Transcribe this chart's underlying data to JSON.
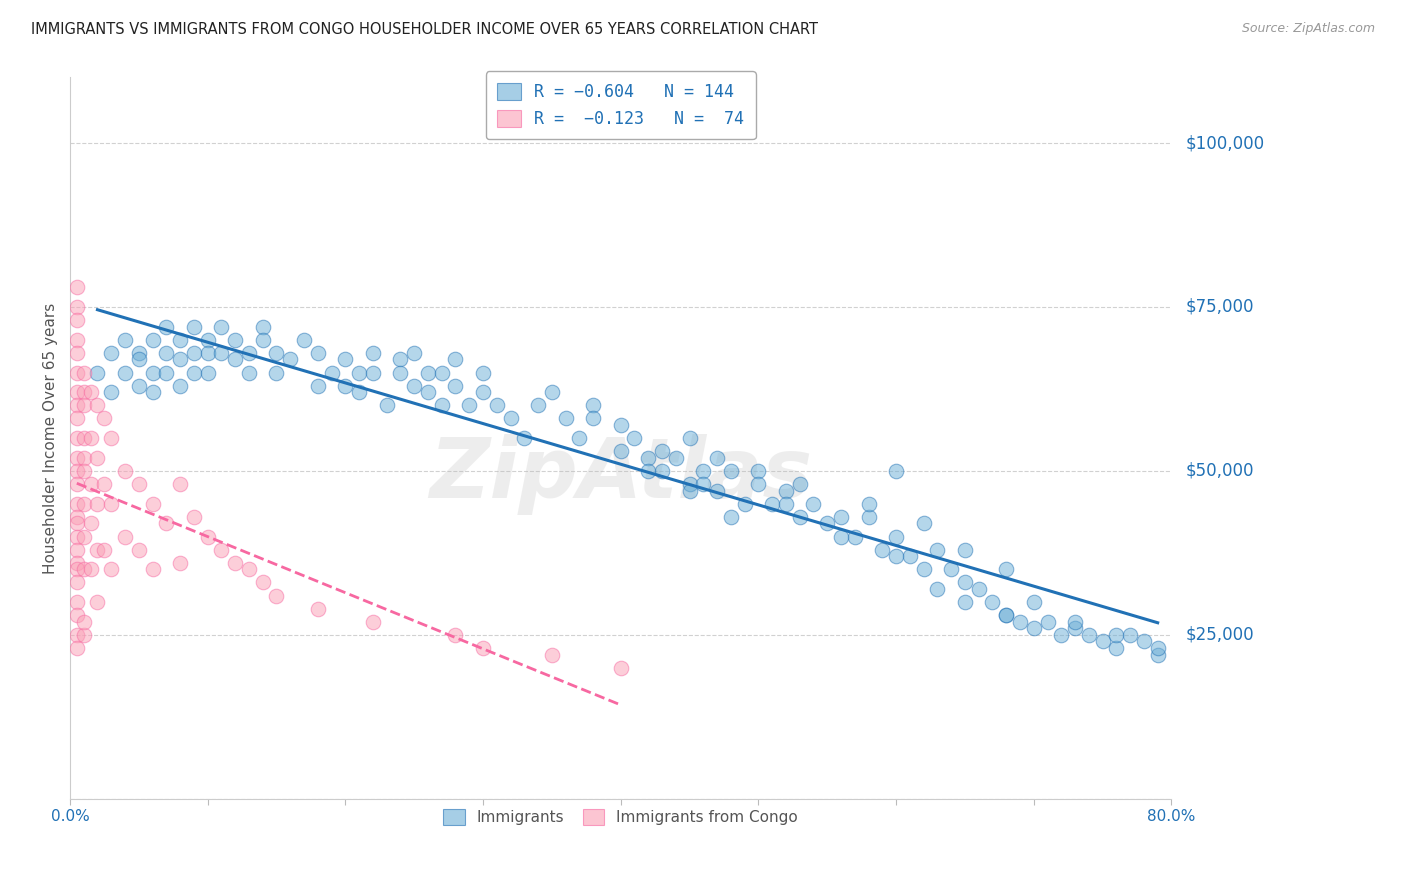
{
  "title": "IMMIGRANTS VS IMMIGRANTS FROM CONGO HOUSEHOLDER INCOME OVER 65 YEARS CORRELATION CHART",
  "source": "Source: ZipAtlas.com",
  "ylabel": "Householder Income Over 65 years",
  "xlim": [
    0.0,
    0.8
  ],
  "ylim": [
    0,
    110000
  ],
  "yticks": [
    0,
    25000,
    50000,
    75000,
    100000
  ],
  "ytick_labels": [
    "",
    "$25,000",
    "$50,000",
    "$75,000",
    "$100,000"
  ],
  "xticks": [
    0.0,
    0.1,
    0.2,
    0.3,
    0.4,
    0.5,
    0.6,
    0.7,
    0.8
  ],
  "xtick_labels": [
    "0.0%",
    "",
    "",
    "",
    "",
    "",
    "",
    "",
    "80.0%"
  ],
  "color_immigrants": "#6baed6",
  "color_congo": "#fa9fb5",
  "trendline_immigrants_color": "#2171b5",
  "trendline_congo_color": "#f768a1",
  "watermark": "ZipAtlas",
  "background_color": "#ffffff",
  "immigrants_x": [
    0.02,
    0.03,
    0.03,
    0.04,
    0.04,
    0.05,
    0.05,
    0.05,
    0.06,
    0.06,
    0.06,
    0.07,
    0.07,
    0.07,
    0.08,
    0.08,
    0.08,
    0.09,
    0.09,
    0.09,
    0.1,
    0.1,
    0.1,
    0.11,
    0.11,
    0.12,
    0.12,
    0.13,
    0.13,
    0.14,
    0.14,
    0.15,
    0.15,
    0.16,
    0.17,
    0.18,
    0.18,
    0.19,
    0.2,
    0.2,
    0.21,
    0.21,
    0.22,
    0.22,
    0.23,
    0.24,
    0.24,
    0.25,
    0.25,
    0.26,
    0.26,
    0.27,
    0.27,
    0.28,
    0.28,
    0.29,
    0.3,
    0.3,
    0.31,
    0.32,
    0.33,
    0.34,
    0.35,
    0.36,
    0.37,
    0.38,
    0.4,
    0.41,
    0.42,
    0.43,
    0.44,
    0.45,
    0.45,
    0.46,
    0.47,
    0.48,
    0.49,
    0.5,
    0.51,
    0.52,
    0.53,
    0.54,
    0.55,
    0.56,
    0.57,
    0.58,
    0.59,
    0.6,
    0.61,
    0.62,
    0.63,
    0.64,
    0.65,
    0.66,
    0.67,
    0.68,
    0.69,
    0.7,
    0.71,
    0.72,
    0.73,
    0.74,
    0.75,
    0.76,
    0.77,
    0.78,
    0.79,
    0.45,
    0.52,
    0.58,
    0.62,
    0.65,
    0.68,
    0.73,
    0.76,
    0.79,
    0.6,
    0.47,
    0.5,
    0.53,
    0.56,
    0.63,
    0.7,
    0.4,
    0.43,
    0.46,
    0.48,
    0.6,
    0.65,
    0.68,
    0.38,
    0.42
  ],
  "immigrants_y": [
    65000,
    68000,
    62000,
    70000,
    65000,
    68000,
    63000,
    67000,
    70000,
    65000,
    62000,
    68000,
    72000,
    65000,
    70000,
    67000,
    63000,
    72000,
    68000,
    65000,
    70000,
    68000,
    65000,
    72000,
    68000,
    70000,
    67000,
    68000,
    65000,
    72000,
    70000,
    68000,
    65000,
    67000,
    70000,
    68000,
    63000,
    65000,
    67000,
    63000,
    65000,
    62000,
    68000,
    65000,
    60000,
    67000,
    65000,
    68000,
    63000,
    65000,
    62000,
    60000,
    65000,
    63000,
    67000,
    60000,
    62000,
    65000,
    60000,
    58000,
    55000,
    60000,
    62000,
    58000,
    55000,
    60000,
    53000,
    55000,
    52000,
    50000,
    52000,
    55000,
    48000,
    50000,
    47000,
    50000,
    45000,
    50000,
    45000,
    47000,
    48000,
    45000,
    42000,
    43000,
    40000,
    43000,
    38000,
    40000,
    37000,
    35000,
    38000,
    35000,
    30000,
    32000,
    30000,
    28000,
    27000,
    30000,
    27000,
    25000,
    26000,
    25000,
    24000,
    23000,
    25000,
    24000,
    22000,
    47000,
    45000,
    45000,
    42000,
    38000,
    35000,
    27000,
    25000,
    23000,
    50000,
    52000,
    48000,
    43000,
    40000,
    32000,
    26000,
    57000,
    53000,
    48000,
    43000,
    37000,
    33000,
    28000,
    58000,
    50000
  ],
  "congo_x": [
    0.005,
    0.005,
    0.005,
    0.005,
    0.005,
    0.005,
    0.005,
    0.005,
    0.005,
    0.005,
    0.005,
    0.005,
    0.005,
    0.005,
    0.005,
    0.005,
    0.005,
    0.005,
    0.005,
    0.005,
    0.01,
    0.01,
    0.01,
    0.01,
    0.01,
    0.01,
    0.01,
    0.01,
    0.01,
    0.015,
    0.015,
    0.015,
    0.015,
    0.015,
    0.02,
    0.02,
    0.02,
    0.02,
    0.02,
    0.025,
    0.025,
    0.025,
    0.03,
    0.03,
    0.03,
    0.04,
    0.04,
    0.05,
    0.05,
    0.06,
    0.06,
    0.07,
    0.08,
    0.08,
    0.09,
    0.1,
    0.11,
    0.12,
    0.13,
    0.14,
    0.15,
    0.18,
    0.22,
    0.28,
    0.3,
    0.35,
    0.4,
    0.005,
    0.005,
    0.005,
    0.005,
    0.005,
    0.01,
    0.01
  ],
  "congo_y": [
    70000,
    68000,
    65000,
    62000,
    60000,
    58000,
    55000,
    52000,
    50000,
    48000,
    45000,
    43000,
    42000,
    40000,
    38000,
    36000,
    35000,
    33000,
    30000,
    28000,
    65000,
    62000,
    60000,
    55000,
    52000,
    50000,
    45000,
    40000,
    35000,
    62000,
    55000,
    48000,
    42000,
    35000,
    60000,
    52000,
    45000,
    38000,
    30000,
    58000,
    48000,
    38000,
    55000,
    45000,
    35000,
    50000,
    40000,
    48000,
    38000,
    45000,
    35000,
    42000,
    48000,
    36000,
    43000,
    40000,
    38000,
    36000,
    35000,
    33000,
    31000,
    29000,
    27000,
    25000,
    23000,
    22000,
    20000,
    78000,
    75000,
    73000,
    25000,
    23000,
    25000,
    27000
  ]
}
